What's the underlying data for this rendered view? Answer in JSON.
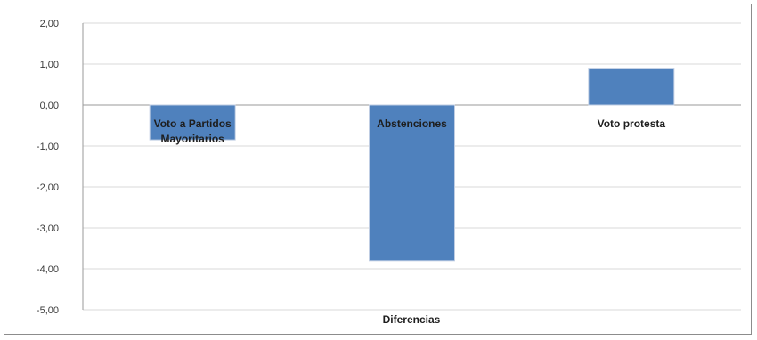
{
  "chart_data": {
    "type": "bar",
    "categories": [
      "Voto a Partidos\nMayoritarios",
      "Abstenciones",
      "Voto protesta"
    ],
    "values": [
      -0.85,
      -3.8,
      0.9
    ],
    "xlabel": "Diferencias",
    "ylabel": "",
    "ylim": [
      -5,
      2
    ],
    "yticks": [
      "2,00",
      "1,00",
      "0,00",
      "-1,00",
      "-2,00",
      "-3,00",
      "-4,00",
      "-5,00"
    ],
    "grid": true,
    "bar_color": "#4f81bd"
  }
}
